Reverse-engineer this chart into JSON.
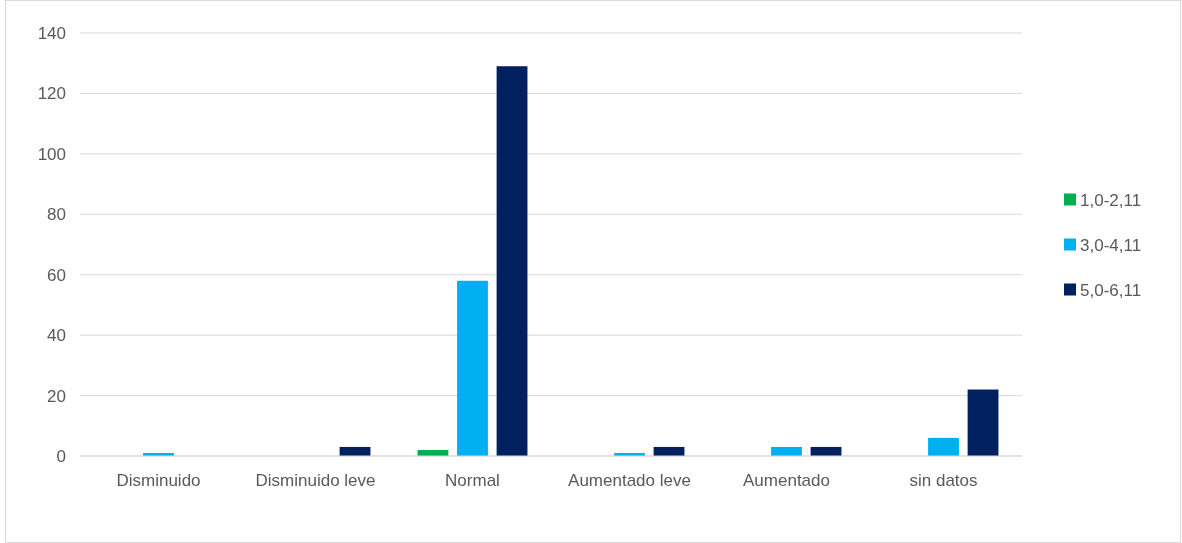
{
  "chart_data": {
    "type": "bar",
    "categories": [
      "Disminuido",
      "Disminuido leve",
      "Normal",
      "Aumentado leve",
      "Aumentado",
      "sin datos"
    ],
    "series": [
      {
        "name": "1,0-2,11",
        "color": "#00b050",
        "values": [
          0,
          0,
          2,
          0,
          0,
          0
        ]
      },
      {
        "name": "3,0-4,11",
        "color": "#00b0f0",
        "values": [
          1,
          0,
          58,
          1,
          3,
          6
        ]
      },
      {
        "name": "5,0-6,11",
        "color": "#002060",
        "values": [
          0,
          3,
          129,
          3,
          3,
          22
        ]
      }
    ],
    "ylim": [
      0,
      140
    ],
    "yticks": [
      0,
      20,
      40,
      60,
      80,
      100,
      120,
      140
    ],
    "grid": "y",
    "legend": "right"
  }
}
